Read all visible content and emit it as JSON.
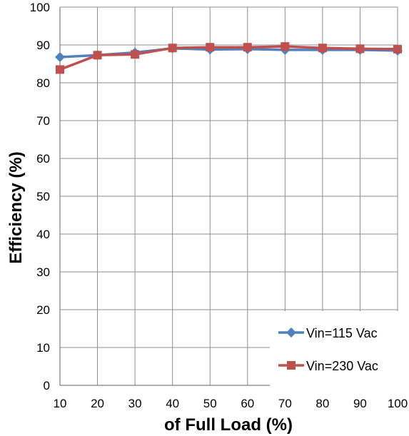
{
  "chart_data": {
    "type": "line",
    "title": "",
    "xlabel": "of Full Load (%)",
    "ylabel": "Efficiency (%)",
    "x": [
      10,
      20,
      30,
      40,
      50,
      60,
      70,
      80,
      90,
      100
    ],
    "xlim": [
      10,
      100
    ],
    "ylim": [
      0,
      100
    ],
    "xticks": [
      10,
      20,
      30,
      40,
      50,
      60,
      70,
      80,
      90,
      100
    ],
    "yticks": [
      0,
      10,
      20,
      30,
      40,
      50,
      60,
      70,
      80,
      90,
      100
    ],
    "grid": true,
    "legend_position": "bottom-right",
    "series": [
      {
        "name": "Vin=115 Vac",
        "color": "#4F81BD",
        "marker": "diamond",
        "values": [
          86.8,
          87.3,
          88.0,
          89.1,
          88.8,
          88.9,
          88.7,
          88.7,
          88.7,
          88.5
        ]
      },
      {
        "name": "Vin=230 Vac",
        "color": "#C0504D",
        "marker": "square",
        "values": [
          83.5,
          87.3,
          87.5,
          89.2,
          89.4,
          89.4,
          89.6,
          89.2,
          89.0,
          88.9
        ]
      }
    ]
  }
}
